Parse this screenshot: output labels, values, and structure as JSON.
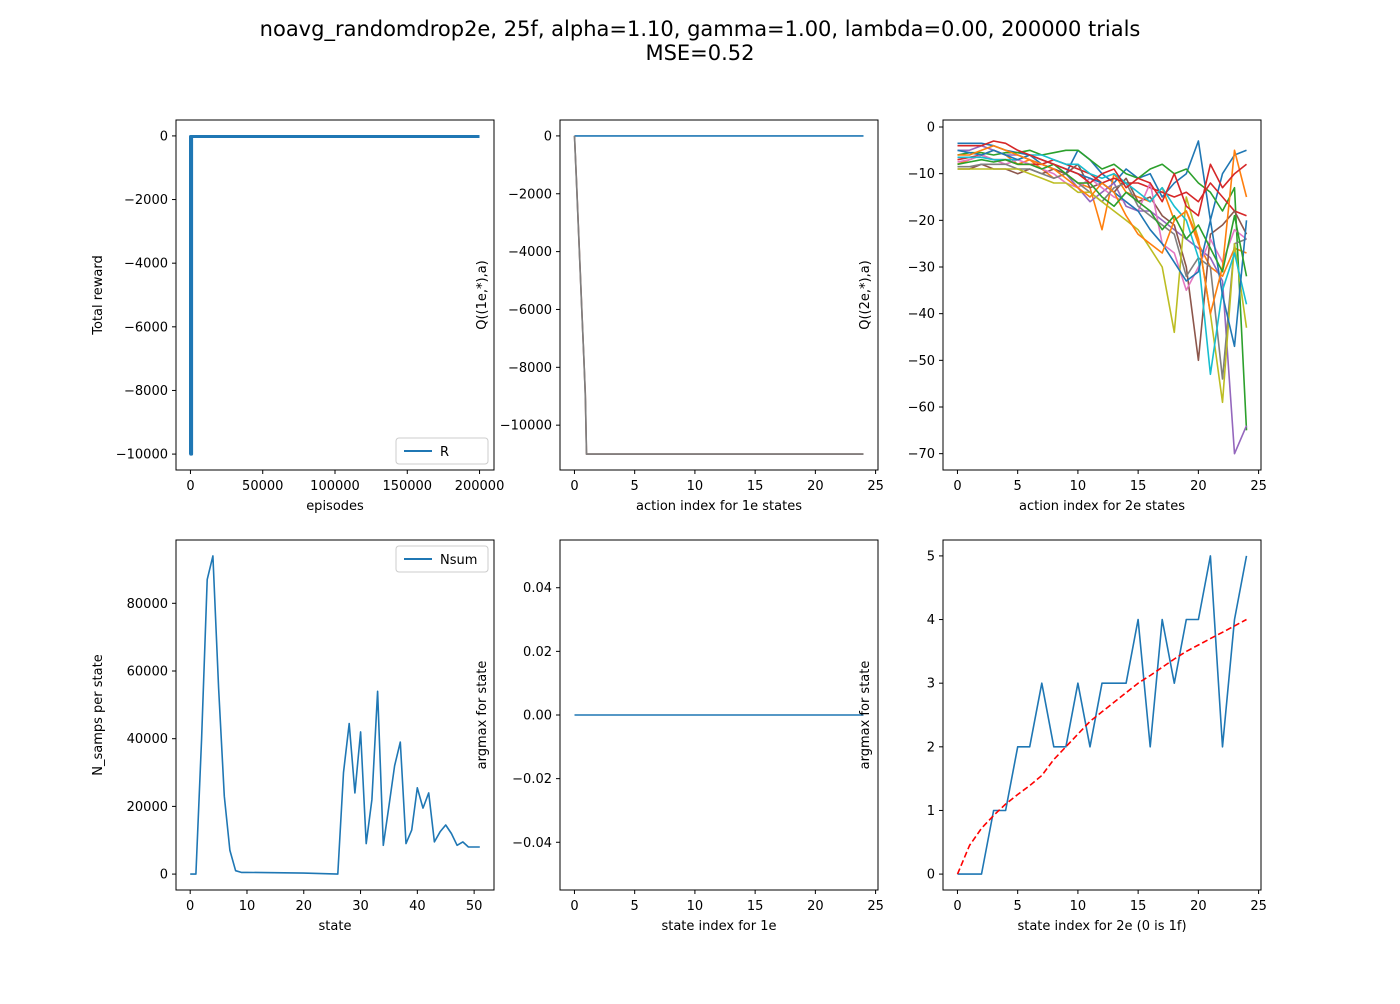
{
  "figure": {
    "title_line1": "noavg_randomdrop2e, 25f, alpha=1.10, gamma=1.00, lambda=0.00, 200000 trials",
    "title_line2": "MSE=0.52"
  },
  "colors": {
    "tab10": [
      "#1f77b4",
      "#ff7f0e",
      "#2ca02c",
      "#d62728",
      "#9467bd",
      "#8c564b",
      "#e377c2",
      "#7f7f7f",
      "#bcbd22",
      "#17becf"
    ],
    "dashed_reference": "#ff0000"
  },
  "chart_data": [
    {
      "id": "p1",
      "type": "line",
      "xlabel": "episodes",
      "ylabel": "Total reward",
      "xlim": [
        -10000,
        210000
      ],
      "ylim": [
        -10500,
        500
      ],
      "xticks": [
        0,
        50000,
        100000,
        150000,
        200000
      ],
      "xticklabels": [
        "0",
        "50000",
        "100000",
        "150000",
        "200000"
      ],
      "yticks": [
        0,
        -2000,
        -4000,
        -6000,
        -8000,
        -10000
      ],
      "yticklabels": [
        "0",
        "−2000",
        "−4000",
        "−6000",
        "−8000",
        "−10000"
      ],
      "grid": false,
      "legend": {
        "position": "lower-right",
        "entries": [
          "R"
        ]
      },
      "series": [
        {
          "name": "R",
          "color": "#1f77b4",
          "width": 3,
          "x": [
            0,
            0,
            200,
            200,
            400,
            400,
            600,
            600,
            800,
            800,
            1000,
            1000,
            200000
          ],
          "y": [
            -10000,
            -20,
            -20,
            -10000,
            -10000,
            -20,
            -20,
            -10000,
            -10000,
            -20,
            -20,
            -20,
            -20
          ]
        }
      ]
    },
    {
      "id": "p2",
      "type": "line",
      "xlabel": "action index for 1e states",
      "ylabel": "Q((1e,*),a)",
      "xlim": [
        -1.2,
        25.2
      ],
      "ylim": [
        -11550,
        550
      ],
      "xticks": [
        0,
        5,
        10,
        15,
        20,
        25
      ],
      "xticklabels": [
        "0",
        "5",
        "10",
        "15",
        "20",
        "25"
      ],
      "yticks": [
        0,
        -2000,
        -4000,
        -6000,
        -8000,
        -10000
      ],
      "yticklabels": [
        "0",
        "−2000",
        "−4000",
        "−6000",
        "−8000",
        "−10000"
      ],
      "grid": false,
      "series": [
        {
          "color": "#1f77b4",
          "x": [
            0,
            24
          ],
          "y": [
            0,
            0
          ]
        },
        {
          "color": "#8c564b",
          "x": [
            0,
            0.15,
            0.3,
            0.45,
            0.6,
            0.75,
            0.9,
            1,
            24
          ],
          "y": [
            0,
            -1400,
            -2900,
            -4400,
            -5900,
            -7400,
            -8900,
            -11000,
            -11000
          ]
        },
        {
          "color": "#7f7f7f",
          "x": [
            0,
            0.18,
            0.33,
            0.48,
            0.63,
            0.78,
            0.92,
            1,
            24
          ],
          "y": [
            0,
            -1700,
            -3200,
            -4700,
            -6200,
            -7700,
            -9200,
            -11000,
            -11000
          ]
        }
      ]
    },
    {
      "id": "p3",
      "type": "line",
      "xlabel": "action index for 2e states",
      "ylabel": "Q((2e,*),a)",
      "xlim": [
        -1.2,
        25.2
      ],
      "ylim": [
        -73.5,
        1.5
      ],
      "xticks": [
        0,
        5,
        10,
        15,
        20,
        25
      ],
      "xticklabels": [
        "0",
        "5",
        "10",
        "15",
        "20",
        "25"
      ],
      "yticks": [
        0,
        -10,
        -20,
        -30,
        -40,
        -50,
        -60,
        -70
      ],
      "yticklabels": [
        "0",
        "−10",
        "−20",
        "−30",
        "−40",
        "−50",
        "−60",
        "−70"
      ],
      "grid": false,
      "x": [
        0,
        1,
        2,
        3,
        4,
        5,
        6,
        7,
        8,
        9,
        10,
        11,
        12,
        13,
        14,
        15,
        16,
        17,
        18,
        19,
        20,
        21,
        22,
        23,
        24
      ],
      "series": [
        {
          "color": "#1f77b4",
          "y": [
            -3.5,
            -3.5,
            -3.5,
            -4,
            -5,
            -5.5,
            -6,
            -8,
            -9,
            -10,
            -5,
            -7,
            -10,
            -12,
            -9,
            -11,
            -10,
            -15,
            -12,
            -10,
            -3,
            -20,
            -10,
            -6,
            -5
          ]
        },
        {
          "color": "#ff7f0e",
          "y": [
            -8,
            -7,
            -6,
            -5,
            -6,
            -8,
            -7,
            -9,
            -11,
            -10,
            -12,
            -13,
            -22,
            -10,
            -14,
            -15,
            -16,
            -13,
            -20,
            -18,
            -25,
            -30,
            -32,
            -26,
            -27
          ]
        },
        {
          "color": "#2ca02c",
          "y": [
            -6,
            -5.5,
            -5.5,
            -6,
            -5.5,
            -5.5,
            -5,
            -6,
            -5.5,
            -5,
            -5,
            -7,
            -9,
            -8,
            -10,
            -11,
            -9,
            -8,
            -10,
            -9,
            -12,
            -14,
            -18,
            -13,
            -65
          ]
        },
        {
          "color": "#d62728",
          "y": [
            -7,
            -6.5,
            -6,
            -7,
            -7,
            -8,
            -8,
            -8,
            -7,
            -8,
            -9,
            -10,
            -12,
            -11,
            -12,
            -12,
            -13,
            -14,
            -15,
            -14,
            -16,
            -12,
            -15,
            -18,
            -19
          ]
        },
        {
          "color": "#9467bd",
          "y": [
            -5,
            -5,
            -4,
            -5,
            -6,
            -6,
            -7,
            -8,
            -9,
            -10,
            -13,
            -16,
            -14,
            -12,
            -17,
            -18,
            -18,
            -20,
            -22,
            -24,
            -26,
            -28,
            -33,
            -70,
            -64
          ]
        },
        {
          "color": "#8c564b",
          "y": [
            -9,
            -9,
            -8,
            -9,
            -9,
            -10,
            -9,
            -10,
            -9,
            -10,
            -8,
            -13,
            -12,
            -14,
            -11,
            -16,
            -15,
            -19,
            -21,
            -30,
            -50,
            -23,
            -21,
            -18,
            -23
          ]
        },
        {
          "color": "#e377c2",
          "y": [
            -7.5,
            -7,
            -6,
            -7,
            -8,
            -7,
            -8,
            -9,
            -10,
            -12,
            -13,
            -11,
            -13,
            -15,
            -16,
            -18,
            -12,
            -25,
            -27,
            -35,
            -30,
            -24,
            -29,
            -22,
            -24
          ]
        },
        {
          "color": "#7f7f7f",
          "y": [
            -8.5,
            -8.5,
            -8,
            -8,
            -8,
            -9,
            -9,
            -10,
            -11,
            -10,
            -12,
            -14,
            -16,
            -13,
            -12,
            -17,
            -19,
            -21,
            -23,
            -32,
            -28,
            -30,
            -54,
            -25,
            -24
          ]
        },
        {
          "color": "#bcbd22",
          "y": [
            -9,
            -9,
            -9,
            -9,
            -9,
            -9,
            -10,
            -11,
            -12,
            -12,
            -14,
            -14,
            -16,
            -18,
            -20,
            -22,
            -26,
            -30,
            -44,
            -15,
            -24,
            -40,
            -59,
            -25,
            -43
          ]
        },
        {
          "color": "#17becf",
          "y": [
            -6.5,
            -6.5,
            -6.5,
            -7,
            -7,
            -7,
            -6,
            -6,
            -7,
            -8,
            -8,
            -10,
            -11,
            -10,
            -12,
            -14,
            -16,
            -13,
            -17,
            -20,
            -28,
            -53,
            -35,
            -27,
            -38
          ]
        },
        {
          "color": "#1f77b4",
          "y": [
            -5,
            -5.5,
            -6,
            -5,
            -6,
            -7,
            -6,
            -7,
            -8,
            -9,
            -10,
            -11,
            -12,
            -14,
            -16,
            -18,
            -22,
            -25,
            -29,
            -33,
            -31,
            -20,
            -36,
            -47,
            -20
          ]
        },
        {
          "color": "#ff7f0e",
          "y": [
            -6,
            -6,
            -5,
            -4,
            -5,
            -6,
            -7,
            -8,
            -9,
            -11,
            -13,
            -15,
            -12,
            -14,
            -19,
            -23,
            -25,
            -27,
            -20,
            -18,
            -24,
            -40,
            -30,
            -5,
            -15
          ]
        },
        {
          "color": "#2ca02c",
          "y": [
            -8,
            -7.5,
            -7,
            -7.5,
            -7,
            -8,
            -8,
            -9,
            -8,
            -10,
            -12,
            -12,
            -15,
            -17,
            -14,
            -16,
            -18,
            -22,
            -19,
            -24,
            -21,
            -26,
            -31,
            -19,
            -32
          ]
        },
        {
          "color": "#d62728",
          "y": [
            -4,
            -4,
            -4,
            -3,
            -3.5,
            -5,
            -6,
            -7,
            -8,
            -9,
            -10,
            -12,
            -10,
            -9,
            -13,
            -11,
            -12,
            -16,
            -10,
            -17,
            -19,
            -8,
            -13,
            -10,
            -8
          ]
        }
      ]
    },
    {
      "id": "p4",
      "type": "line",
      "xlabel": "state",
      "ylabel": "N_samps per state",
      "xlim": [
        -2.5,
        53.5
      ],
      "ylim": [
        -4700,
        98700
      ],
      "xticks": [
        0,
        10,
        20,
        30,
        40,
        50
      ],
      "xticklabels": [
        "0",
        "10",
        "20",
        "30",
        "40",
        "50"
      ],
      "yticks": [
        0,
        20000,
        40000,
        60000,
        80000
      ],
      "yticklabels": [
        "0",
        "20000",
        "40000",
        "60000",
        "80000"
      ],
      "grid": false,
      "legend": {
        "position": "upper-right",
        "entries": [
          "Nsum"
        ]
      },
      "series": [
        {
          "name": "Nsum",
          "color": "#1f77b4",
          "x": [
            0,
            1,
            2,
            3,
            4,
            5,
            6,
            7,
            8,
            9,
            10,
            20,
            26,
            27,
            28,
            29,
            30,
            31,
            32,
            33,
            34,
            35,
            36,
            37,
            38,
            39,
            40,
            41,
            42,
            43,
            44,
            45,
            46,
            47,
            48,
            49,
            50,
            51
          ],
          "y": [
            0,
            0,
            40000,
            87000,
            94000,
            55000,
            23000,
            7000,
            1000,
            500,
            500,
            300,
            0,
            30000,
            44500,
            24000,
            42000,
            9000,
            22000,
            54000,
            8500,
            20000,
            32000,
            39000,
            9000,
            13000,
            25500,
            19500,
            24000,
            9500,
            12500,
            14500,
            12000,
            8500,
            9500,
            8000,
            8000,
            8000
          ]
        }
      ]
    },
    {
      "id": "p5",
      "type": "line",
      "xlabel": "state index for 1e",
      "ylabel": "argmax for state",
      "xlim": [
        -1.2,
        25.2
      ],
      "ylim": [
        -0.055,
        0.055
      ],
      "xticks": [
        0,
        5,
        10,
        15,
        20,
        25
      ],
      "xticklabels": [
        "0",
        "5",
        "10",
        "15",
        "20",
        "25"
      ],
      "yticks": [
        0.04,
        0.02,
        0.0,
        -0.02,
        -0.04
      ],
      "yticklabels": [
        "0.04",
        "0.02",
        "0.00",
        "−0.02",
        "−0.04"
      ],
      "grid": false,
      "series": [
        {
          "color": "#1f77b4",
          "x": [
            0,
            24
          ],
          "y": [
            0,
            0
          ]
        }
      ]
    },
    {
      "id": "p6",
      "type": "line",
      "xlabel": "state index for 2e (0 is 1f)",
      "ylabel": "argmax for state",
      "xlim": [
        -1.2,
        25.2
      ],
      "ylim": [
        -0.25,
        5.25
      ],
      "xticks": [
        0,
        5,
        10,
        15,
        20,
        25
      ],
      "xticklabels": [
        "0",
        "5",
        "10",
        "15",
        "20",
        "25"
      ],
      "yticks": [
        0,
        1,
        2,
        3,
        4,
        5
      ],
      "yticklabels": [
        "0",
        "1",
        "2",
        "3",
        "4",
        "5"
      ],
      "grid": false,
      "series": [
        {
          "color": "#1f77b4",
          "x": [
            0,
            1,
            2,
            3,
            4,
            5,
            6,
            7,
            8,
            9,
            10,
            11,
            12,
            13,
            14,
            15,
            16,
            17,
            18,
            19,
            20,
            21,
            22,
            23,
            24
          ],
          "y": [
            0,
            0,
            0,
            1,
            1,
            2,
            2,
            3,
            2,
            2,
            3,
            2,
            3,
            3,
            3,
            4,
            2,
            4,
            3,
            4,
            4,
            5,
            2,
            4,
            5
          ]
        },
        {
          "color": "#ff0000",
          "dashed": true,
          "x": [
            0,
            1,
            2,
            3,
            4,
            5,
            6,
            7,
            8,
            9,
            10,
            11,
            12,
            13,
            14,
            15,
            16,
            17,
            18,
            19,
            20,
            21,
            22,
            23,
            24
          ],
          "y": [
            0,
            0.45,
            0.72,
            0.92,
            1.1,
            1.25,
            1.39,
            1.55,
            1.8,
            2.0,
            2.2,
            2.4,
            2.55,
            2.7,
            2.85,
            3.0,
            3.12,
            3.25,
            3.38,
            3.5,
            3.6,
            3.7,
            3.8,
            3.9,
            4.0
          ]
        }
      ]
    }
  ]
}
